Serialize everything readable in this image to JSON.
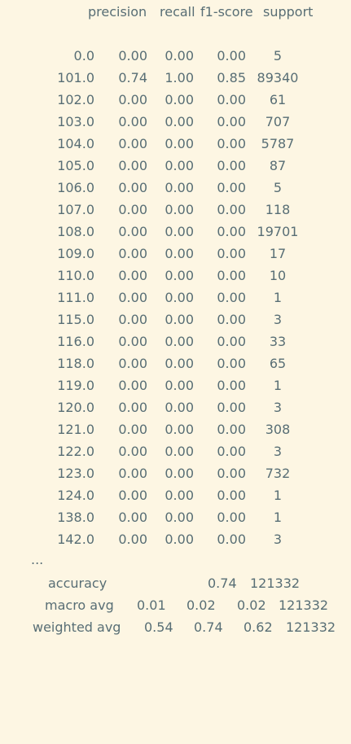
{
  "report": {
    "headers": [
      "precision",
      "recall",
      "f1-score",
      "support"
    ],
    "rows": [
      {
        "label": "0.0",
        "precision": "0.00",
        "recall": "0.00",
        "f1": "0.00",
        "support": "5"
      },
      {
        "label": "101.0",
        "precision": "0.74",
        "recall": "1.00",
        "f1": "0.85",
        "support": "89340"
      },
      {
        "label": "102.0",
        "precision": "0.00",
        "recall": "0.00",
        "f1": "0.00",
        "support": "61"
      },
      {
        "label": "103.0",
        "precision": "0.00",
        "recall": "0.00",
        "f1": "0.00",
        "support": "707"
      },
      {
        "label": "104.0",
        "precision": "0.00",
        "recall": "0.00",
        "f1": "0.00",
        "support": "5787"
      },
      {
        "label": "105.0",
        "precision": "0.00",
        "recall": "0.00",
        "f1": "0.00",
        "support": "87"
      },
      {
        "label": "106.0",
        "precision": "0.00",
        "recall": "0.00",
        "f1": "0.00",
        "support": "5"
      },
      {
        "label": "107.0",
        "precision": "0.00",
        "recall": "0.00",
        "f1": "0.00",
        "support": "118"
      },
      {
        "label": "108.0",
        "precision": "0.00",
        "recall": "0.00",
        "f1": "0.00",
        "support": "19701"
      },
      {
        "label": "109.0",
        "precision": "0.00",
        "recall": "0.00",
        "f1": "0.00",
        "support": "17"
      },
      {
        "label": "110.0",
        "precision": "0.00",
        "recall": "0.00",
        "f1": "0.00",
        "support": "10"
      },
      {
        "label": "111.0",
        "precision": "0.00",
        "recall": "0.00",
        "f1": "0.00",
        "support": "1"
      },
      {
        "label": "115.0",
        "precision": "0.00",
        "recall": "0.00",
        "f1": "0.00",
        "support": "3"
      },
      {
        "label": "116.0",
        "precision": "0.00",
        "recall": "0.00",
        "f1": "0.00",
        "support": "33"
      },
      {
        "label": "118.0",
        "precision": "0.00",
        "recall": "0.00",
        "f1": "0.00",
        "support": "65"
      },
      {
        "label": "119.0",
        "precision": "0.00",
        "recall": "0.00",
        "f1": "0.00",
        "support": "1"
      },
      {
        "label": "120.0",
        "precision": "0.00",
        "recall": "0.00",
        "f1": "0.00",
        "support": "3"
      },
      {
        "label": "121.0",
        "precision": "0.00",
        "recall": "0.00",
        "f1": "0.00",
        "support": "308"
      },
      {
        "label": "122.0",
        "precision": "0.00",
        "recall": "0.00",
        "f1": "0.00",
        "support": "3"
      },
      {
        "label": "123.0",
        "precision": "0.00",
        "recall": "0.00",
        "f1": "0.00",
        "support": "732"
      },
      {
        "label": "124.0",
        "precision": "0.00",
        "recall": "0.00",
        "f1": "0.00",
        "support": "1"
      },
      {
        "label": "138.0",
        "precision": "0.00",
        "recall": "0.00",
        "f1": "0.00",
        "support": "1"
      },
      {
        "label": "142.0",
        "precision": "0.00",
        "recall": "0.00",
        "f1": "0.00",
        "support": "3"
      }
    ],
    "ellipsis": "...",
    "accuracy": {
      "label": "accuracy",
      "value": "0.74",
      "support": "121332"
    },
    "macro_avg": {
      "label": "macro avg",
      "precision": "0.01",
      "recall": "0.02",
      "f1": "0.02",
      "support": "121332"
    },
    "weighted_avg": {
      "label": "weighted avg",
      "precision": "0.54",
      "recall": "0.74",
      "f1": "0.62",
      "support": "121332"
    }
  },
  "colors": {
    "background": "#fdf6e3",
    "text": "#586e75"
  }
}
